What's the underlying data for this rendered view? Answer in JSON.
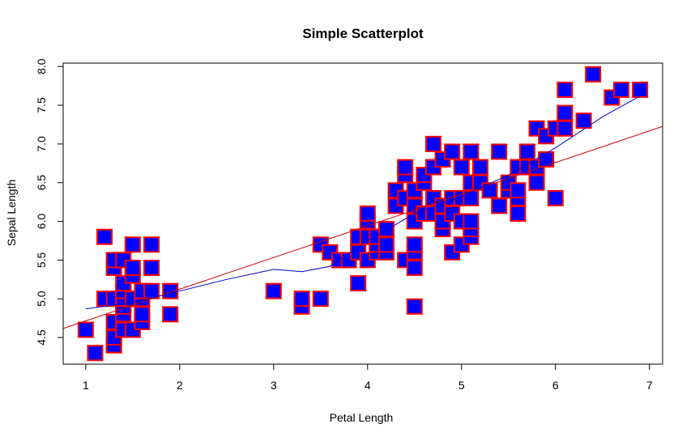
{
  "chart_data": {
    "type": "scatter",
    "title": "Simple Scatterplot",
    "xlabel": "Petal Length",
    "ylabel": "Sepal Length",
    "xlim": [
      0.76,
      7.14
    ],
    "ylim": [
      4.156,
      8.044
    ],
    "xticks": [
      "1",
      "2",
      "3",
      "4",
      "5",
      "6",
      "7"
    ],
    "yticks": [
      "4.5",
      "5.0",
      "5.5",
      "6.0",
      "6.5",
      "7.0",
      "7.5",
      "8.0"
    ],
    "grid": false,
    "legend": "none",
    "point_style": {
      "fill": "#0000ff",
      "stroke": "#ff0000",
      "shape": "square"
    },
    "points": [
      [
        1.0,
        4.6
      ],
      [
        1.1,
        4.3
      ],
      [
        1.2,
        5.8
      ],
      [
        1.2,
        5.0
      ],
      [
        1.3,
        4.4
      ],
      [
        1.3,
        4.4
      ],
      [
        1.3,
        4.5
      ],
      [
        1.3,
        4.7
      ],
      [
        1.3,
        5.0
      ],
      [
        1.3,
        5.4
      ],
      [
        1.3,
        5.5
      ],
      [
        1.4,
        4.6
      ],
      [
        1.4,
        4.8
      ],
      [
        1.4,
        4.9
      ],
      [
        1.4,
        5.0
      ],
      [
        1.4,
        5.1
      ],
      [
        1.4,
        5.2
      ],
      [
        1.4,
        5.5
      ],
      [
        1.5,
        4.6
      ],
      [
        1.5,
        5.0
      ],
      [
        1.5,
        5.3
      ],
      [
        1.5,
        5.4
      ],
      [
        1.5,
        5.7
      ],
      [
        1.6,
        4.7
      ],
      [
        1.6,
        4.8
      ],
      [
        1.6,
        5.0
      ],
      [
        1.6,
        5.1
      ],
      [
        1.7,
        5.1
      ],
      [
        1.7,
        5.4
      ],
      [
        1.7,
        5.7
      ],
      [
        1.9,
        4.8
      ],
      [
        1.9,
        5.1
      ],
      [
        3.0,
        5.1
      ],
      [
        3.3,
        4.9
      ],
      [
        3.3,
        5.0
      ],
      [
        3.5,
        5.0
      ],
      [
        3.5,
        5.7
      ],
      [
        3.6,
        5.6
      ],
      [
        3.7,
        5.5
      ],
      [
        3.8,
        5.5
      ],
      [
        3.9,
        5.2
      ],
      [
        3.9,
        5.6
      ],
      [
        3.9,
        5.8
      ],
      [
        4.0,
        5.5
      ],
      [
        4.0,
        5.8
      ],
      [
        4.0,
        6.0
      ],
      [
        4.0,
        6.1
      ],
      [
        4.1,
        5.6
      ],
      [
        4.1,
        5.7
      ],
      [
        4.1,
        5.8
      ],
      [
        4.2,
        5.6
      ],
      [
        4.2,
        5.7
      ],
      [
        4.2,
        5.9
      ],
      [
        4.3,
        6.2
      ],
      [
        4.3,
        6.4
      ],
      [
        4.4,
        5.5
      ],
      [
        4.4,
        6.3
      ],
      [
        4.4,
        6.6
      ],
      [
        4.4,
        6.7
      ],
      [
        4.5,
        4.9
      ],
      [
        4.5,
        5.4
      ],
      [
        4.5,
        5.6
      ],
      [
        4.5,
        5.7
      ],
      [
        4.5,
        6.0
      ],
      [
        4.5,
        6.2
      ],
      [
        4.5,
        6.4
      ],
      [
        4.6,
        6.1
      ],
      [
        4.6,
        6.5
      ],
      [
        4.6,
        6.6
      ],
      [
        4.7,
        6.1
      ],
      [
        4.7,
        6.3
      ],
      [
        4.7,
        6.7
      ],
      [
        4.7,
        7.0
      ],
      [
        4.8,
        5.9
      ],
      [
        4.8,
        6.0
      ],
      [
        4.8,
        6.2
      ],
      [
        4.8,
        6.8
      ],
      [
        4.9,
        5.6
      ],
      [
        4.9,
        6.1
      ],
      [
        4.9,
        6.3
      ],
      [
        4.9,
        6.9
      ],
      [
        5.0,
        5.7
      ],
      [
        5.0,
        6.0
      ],
      [
        5.0,
        6.3
      ],
      [
        5.0,
        6.7
      ],
      [
        5.1,
        5.8
      ],
      [
        5.1,
        5.9
      ],
      [
        5.1,
        6.0
      ],
      [
        5.1,
        6.3
      ],
      [
        5.1,
        6.5
      ],
      [
        5.1,
        6.9
      ],
      [
        5.2,
        6.5
      ],
      [
        5.2,
        6.7
      ],
      [
        5.3,
        6.4
      ],
      [
        5.4,
        6.2
      ],
      [
        5.4,
        6.9
      ],
      [
        5.5,
        6.4
      ],
      [
        5.5,
        6.5
      ],
      [
        5.6,
        6.1
      ],
      [
        5.6,
        6.3
      ],
      [
        5.6,
        6.4
      ],
      [
        5.6,
        6.7
      ],
      [
        5.7,
        6.7
      ],
      [
        5.7,
        6.9
      ],
      [
        5.8,
        6.5
      ],
      [
        5.8,
        6.7
      ],
      [
        5.8,
        7.2
      ],
      [
        5.9,
        6.8
      ],
      [
        5.9,
        7.1
      ],
      [
        6.0,
        6.3
      ],
      [
        6.0,
        7.2
      ],
      [
        6.1,
        7.2
      ],
      [
        6.1,
        7.4
      ],
      [
        6.1,
        7.7
      ],
      [
        6.3,
        7.3
      ],
      [
        6.4,
        7.9
      ],
      [
        6.6,
        7.6
      ],
      [
        6.7,
        7.7
      ],
      [
        6.9,
        7.7
      ]
    ],
    "regression_line": {
      "color": "#cc0000",
      "intercept": 4.306,
      "slope": 0.409
    },
    "lowess_line": {
      "color": "#0000cc",
      "x": [
        1.0,
        1.5,
        2.0,
        2.5,
        3.0,
        3.3,
        3.6,
        4.0,
        4.5,
        5.0,
        5.5,
        6.0,
        6.5,
        6.9
      ],
      "y": [
        4.87,
        4.95,
        5.1,
        5.25,
        5.38,
        5.35,
        5.42,
        5.75,
        6.1,
        6.32,
        6.6,
        6.95,
        7.35,
        7.62
      ]
    }
  }
}
